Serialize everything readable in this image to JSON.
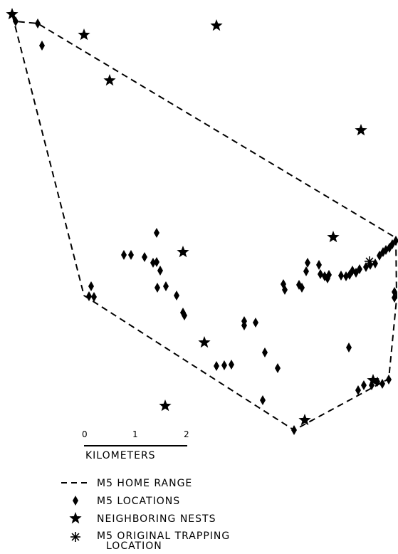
{
  "scale_bar": {
    "ticks": [
      "0",
      "1",
      "2"
    ],
    "unit_label": "KILOMETERS"
  },
  "legend": {
    "home_range": "M5 HOME RANGE",
    "locations": "M5 LOCATIONS",
    "nests": "NEIGHBORING NESTS",
    "trapping_line1": "M5 ORIGINAL TRAPPING",
    "trapping_line2": "LOCATION"
  },
  "symbols": {
    "home_range": "dashed-line",
    "locations": "diamond-icon",
    "nests": "star-icon",
    "trapping": "asterisk-icon"
  }
}
